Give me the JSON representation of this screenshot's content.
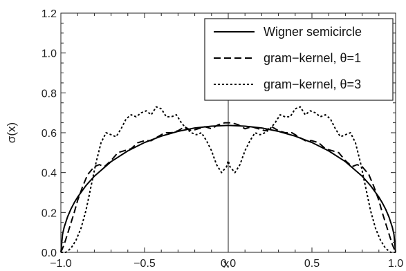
{
  "chart_data": {
    "type": "line",
    "xlabel": "x",
    "ylabel": "σ(x)",
    "xlim": [
      -1.0,
      1.0
    ],
    "ylim": [
      0.0,
      1.2
    ],
    "xticks": [
      -1.0,
      -0.5,
      0.0,
      0.5,
      1.0
    ],
    "xtick_labels": [
      "−1.0",
      "−0.5",
      "0.0",
      "0.5",
      "1.0"
    ],
    "yticks": [
      0.0,
      0.2,
      0.4,
      0.6,
      0.8,
      1.0,
      1.2
    ],
    "ytick_labels": [
      "0.0",
      "0.2",
      "0.4",
      "0.6",
      "0.8",
      "1.0",
      "1.2"
    ],
    "grid": false,
    "legend_position": "top-right",
    "series": [
      {
        "name": "Wigner semicircle",
        "style": "solid",
        "color": "#000000",
        "x": [
          -1.0,
          -0.99,
          -0.98,
          -0.96,
          -0.94,
          -0.92,
          -0.9,
          -0.85,
          -0.8,
          -0.7,
          -0.6,
          -0.5,
          -0.4,
          -0.3,
          -0.2,
          -0.1,
          0.0,
          0.1,
          0.2,
          0.3,
          0.4,
          0.5,
          0.6,
          0.7,
          0.8,
          0.85,
          0.9,
          0.92,
          0.94,
          0.96,
          0.98,
          0.99,
          1.0
        ],
        "y": [
          0.0,
          0.09,
          0.127,
          0.178,
          0.217,
          0.249,
          0.277,
          0.335,
          0.382,
          0.455,
          0.509,
          0.551,
          0.583,
          0.607,
          0.624,
          0.633,
          0.637,
          0.633,
          0.624,
          0.607,
          0.583,
          0.551,
          0.509,
          0.455,
          0.382,
          0.335,
          0.277,
          0.249,
          0.217,
          0.178,
          0.127,
          0.09,
          0.0
        ]
      },
      {
        "name": "gram−kernel, θ=1",
        "style": "dashed",
        "color": "#000000",
        "x": [
          -1.0,
          -0.98,
          -0.95,
          -0.92,
          -0.9,
          -0.87,
          -0.84,
          -0.8,
          -0.77,
          -0.74,
          -0.7,
          -0.66,
          -0.62,
          -0.58,
          -0.54,
          -0.5,
          -0.46,
          -0.42,
          -0.38,
          -0.34,
          -0.3,
          -0.26,
          -0.22,
          -0.18,
          -0.14,
          -0.1,
          -0.06,
          -0.02,
          0.02,
          0.06,
          0.1,
          0.14,
          0.18,
          0.22,
          0.26,
          0.3,
          0.34,
          0.38,
          0.42,
          0.46,
          0.5,
          0.54,
          0.58,
          0.62,
          0.66,
          0.7,
          0.74,
          0.77,
          0.8,
          0.84,
          0.87,
          0.9,
          0.92,
          0.95,
          0.98,
          1.0
        ],
        "y": [
          0.0,
          0.04,
          0.12,
          0.2,
          0.26,
          0.33,
          0.39,
          0.43,
          0.44,
          0.43,
          0.46,
          0.5,
          0.51,
          0.52,
          0.55,
          0.56,
          0.56,
          0.58,
          0.6,
          0.6,
          0.61,
          0.63,
          0.61,
          0.62,
          0.63,
          0.62,
          0.64,
          0.65,
          0.65,
          0.64,
          0.62,
          0.63,
          0.62,
          0.61,
          0.63,
          0.61,
          0.6,
          0.6,
          0.58,
          0.56,
          0.56,
          0.55,
          0.52,
          0.51,
          0.5,
          0.46,
          0.43,
          0.44,
          0.43,
          0.39,
          0.33,
          0.26,
          0.2,
          0.12,
          0.04,
          0.0
        ]
      },
      {
        "name": "gram−kernel, θ=3",
        "style": "dotted",
        "color": "#000000",
        "x": [
          -1.0,
          -0.97,
          -0.94,
          -0.91,
          -0.88,
          -0.85,
          -0.82,
          -0.79,
          -0.76,
          -0.73,
          -0.7,
          -0.67,
          -0.64,
          -0.61,
          -0.58,
          -0.55,
          -0.52,
          -0.49,
          -0.46,
          -0.43,
          -0.4,
          -0.37,
          -0.34,
          -0.31,
          -0.28,
          -0.25,
          -0.22,
          -0.19,
          -0.16,
          -0.13,
          -0.1,
          -0.07,
          -0.04,
          -0.01,
          0.0,
          0.01,
          0.04,
          0.07,
          0.1,
          0.13,
          0.16,
          0.19,
          0.22,
          0.25,
          0.28,
          0.31,
          0.34,
          0.37,
          0.4,
          0.43,
          0.46,
          0.49,
          0.52,
          0.55,
          0.58,
          0.61,
          0.64,
          0.67,
          0.7,
          0.73,
          0.76,
          0.79,
          0.82,
          0.85,
          0.88,
          0.91,
          0.94,
          0.97,
          1.0
        ],
        "y": [
          0.0,
          0.0,
          0.02,
          0.06,
          0.12,
          0.21,
          0.33,
          0.45,
          0.55,
          0.6,
          0.59,
          0.58,
          0.62,
          0.67,
          0.69,
          0.68,
          0.7,
          0.71,
          0.69,
          0.73,
          0.72,
          0.68,
          0.68,
          0.69,
          0.65,
          0.62,
          0.6,
          0.59,
          0.6,
          0.56,
          0.51,
          0.44,
          0.4,
          0.43,
          0.46,
          0.43,
          0.4,
          0.44,
          0.51,
          0.56,
          0.6,
          0.59,
          0.6,
          0.62,
          0.65,
          0.69,
          0.68,
          0.68,
          0.72,
          0.73,
          0.69,
          0.71,
          0.7,
          0.68,
          0.69,
          0.67,
          0.62,
          0.58,
          0.59,
          0.6,
          0.55,
          0.45,
          0.33,
          0.21,
          0.12,
          0.06,
          0.02,
          0.0,
          0.0
        ]
      }
    ]
  }
}
